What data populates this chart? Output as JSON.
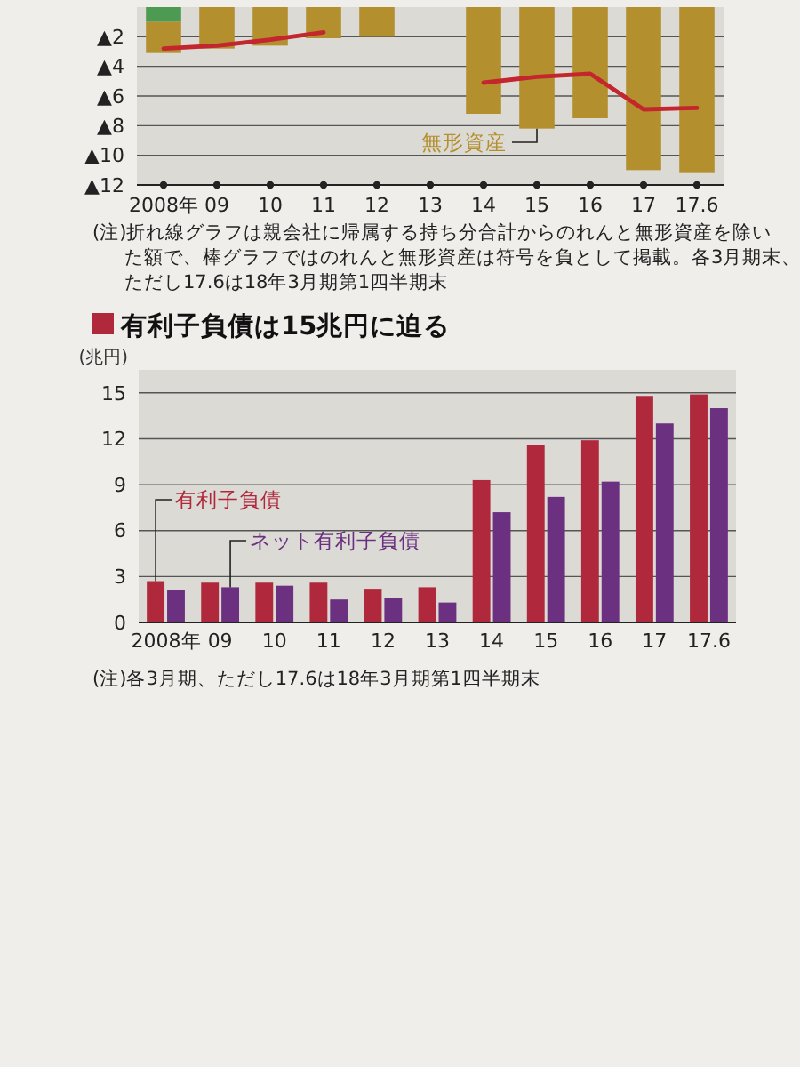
{
  "chart_data": [
    {
      "type": "bar",
      "stacked": true,
      "categories": [
        "2008年",
        "09",
        "10",
        "11",
        "12",
        "13",
        "14",
        "15",
        "16",
        "17",
        "17.6"
      ],
      "series": [
        {
          "color": "#4d9a52",
          "values": [
            -1.0,
            null,
            null,
            null,
            null,
            null,
            null,
            null,
            null,
            null,
            null
          ]
        },
        {
          "name": "無形資産",
          "color": "#b48f2e",
          "values": [
            -2.1,
            -2.8,
            -2.6,
            -2.1,
            -2.0,
            null,
            -7.2,
            -8.2,
            -7.5,
            -11.0,
            -11.2
          ]
        },
        {
          "type": "line",
          "color": "#c4262e",
          "values": [
            -2.8,
            -2.6,
            -2.2,
            -1.7,
            null,
            null,
            -5.1,
            -4.7,
            -4.5,
            -6.9,
            -6.8
          ]
        }
      ],
      "ylim": [
        -12,
        0
      ],
      "yticks": [
        {
          "value": -2,
          "label": "▲2"
        },
        {
          "value": -4,
          "label": "▲4"
        },
        {
          "value": -6,
          "label": "▲6"
        },
        {
          "value": -8,
          "label": "▲8"
        },
        {
          "value": -10,
          "label": "▲10"
        },
        {
          "value": -12,
          "label": "▲12"
        }
      ],
      "grid": "y",
      "annotations": [
        "(注)折れ線グラフは親会社に帰属する持ち分合計からのれんと無形資産を除いた額で、棒グラフではのれんと無形資産は符号を負として掲載。各3月期末、ただし17.6は18年3月期第1四半期末"
      ]
    },
    {
      "type": "bar",
      "title": "有利子負債は15兆円に迫る",
      "ylabel": "(兆円)",
      "categories": [
        "2008年",
        "09",
        "10",
        "11",
        "12",
        "13",
        "14",
        "15",
        "16",
        "17",
        "17.6"
      ],
      "series": [
        {
          "name": "有利子負債",
          "color": "#b0283c",
          "values": [
            2.7,
            2.6,
            2.6,
            2.6,
            2.2,
            2.3,
            9.3,
            11.6,
            11.9,
            14.8,
            14.9
          ]
        },
        {
          "name": "ネット有利子負債",
          "color": "#6b3080",
          "values": [
            2.1,
            2.3,
            2.4,
            1.5,
            1.6,
            1.3,
            7.2,
            8.2,
            9.2,
            13.0,
            14.0
          ]
        }
      ],
      "ylim": [
        0,
        16.5
      ],
      "yticks": [
        0,
        3,
        6,
        9,
        12,
        15
      ],
      "grid": "y",
      "annotations": [
        "(注)各3月期、ただし17.6は18年3月期第1四半期末"
      ]
    }
  ]
}
